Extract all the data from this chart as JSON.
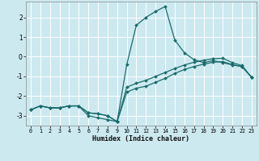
{
  "xlabel": "Humidex (Indice chaleur)",
  "background_color": "#cce9f0",
  "grid_color": "#ffffff",
  "line_color": "#1a6b6b",
  "xlim": [
    -0.5,
    23.5
  ],
  "ylim": [
    -3.5,
    2.8
  ],
  "xticks": [
    0,
    1,
    2,
    3,
    4,
    5,
    6,
    7,
    8,
    9,
    10,
    11,
    12,
    13,
    14,
    15,
    16,
    17,
    18,
    19,
    20,
    21,
    22,
    23
  ],
  "yticks": [
    -3,
    -2,
    -1,
    0,
    1,
    2
  ],
  "series": [
    {
      "x": [
        0,
        1,
        2,
        3,
        4,
        5,
        6,
        7,
        8,
        9,
        10,
        11,
        12,
        13,
        14,
        15,
        16,
        17,
        18,
        19,
        20,
        21,
        22,
        23
      ],
      "y": [
        -2.7,
        -2.5,
        -2.6,
        -2.6,
        -2.5,
        -2.5,
        -3.0,
        -3.1,
        -3.2,
        -3.3,
        -1.8,
        -1.6,
        -1.5,
        -1.3,
        -1.1,
        -0.85,
        -0.65,
        -0.5,
        -0.38,
        -0.28,
        -0.25,
        -0.4,
        -0.5,
        -1.05
      ]
    },
    {
      "x": [
        0,
        1,
        2,
        3,
        4,
        5,
        6,
        7,
        8,
        9,
        10,
        11,
        12,
        13,
        14,
        15,
        16,
        17,
        18,
        19,
        20,
        21,
        22,
        23
      ],
      "y": [
        -2.7,
        -2.5,
        -2.6,
        -2.6,
        -2.5,
        -2.5,
        -2.85,
        -2.9,
        -3.0,
        -3.3,
        -0.4,
        1.6,
        2.0,
        2.3,
        2.55,
        0.85,
        0.2,
        -0.15,
        -0.3,
        -0.2,
        -0.3,
        -0.42,
        -0.5,
        -1.05
      ]
    },
    {
      "x": [
        0,
        1,
        2,
        3,
        4,
        5,
        6,
        7,
        8,
        9,
        10,
        11,
        12,
        13,
        14,
        15,
        16,
        17,
        18,
        19,
        20,
        21,
        22,
        23
      ],
      "y": [
        -2.7,
        -2.5,
        -2.6,
        -2.6,
        -2.5,
        -2.5,
        -2.85,
        -2.9,
        -3.0,
        -3.3,
        -1.55,
        -1.35,
        -1.2,
        -1.0,
        -0.8,
        -0.6,
        -0.42,
        -0.28,
        -0.18,
        -0.1,
        -0.08,
        -0.3,
        -0.45,
        -1.05
      ]
    }
  ]
}
